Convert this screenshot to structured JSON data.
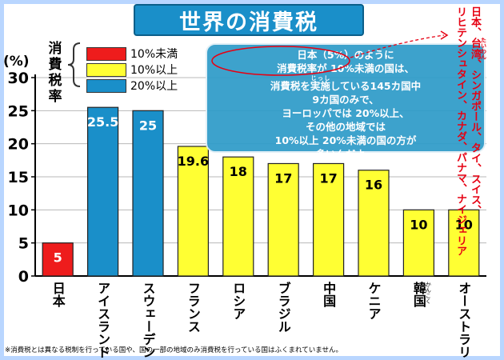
{
  "title": "世界の消費税",
  "legend": {
    "heading": "消費税率",
    "items": [
      {
        "label": "10%未満",
        "color": "#ee1c1c"
      },
      {
        "label": "10%以上",
        "color": "#ffff33"
      },
      {
        "label": "20%以上",
        "color": "#1a8fc9"
      }
    ]
  },
  "note_lines": [
    "日本（5%）のように",
    "消費税率が 10%未満の国は、",
    "消費税を実施している145カ国中",
    "9カ国のみで、",
    "ヨーロッパでは 20%以上、",
    "その他の地域では",
    "10%以上 20%未満の国の方が",
    "多いんだよ。"
  ],
  "note_ruby": {
    "base": "実施",
    "reading": "じっし"
  },
  "side_note_lines": [
    "日本、台湾、シンガポール、タイ、スイス、",
    "リヒテンシュタイン、カナダ、パナマ、ナイジェリア"
  ],
  "side_note_ruby": {
    "base": "台湾",
    "reading": "たいわん"
  },
  "korea_ruby": "かんこく",
  "footnote": "※消費税とは異なる税制を行っている国や、国の一部の地域のみ消費税を行っている国はふくまれていません。",
  "chart_data": {
    "type": "bar",
    "ylabel": "(%)",
    "ylim": [
      0,
      30
    ],
    "yticks": [
      0,
      5,
      10,
      15,
      20,
      25,
      30
    ],
    "categories": [
      "日本",
      "アイスランド",
      "スウェーデン",
      "フランス",
      "ロシア",
      "ブラジル",
      "中国",
      "ケニア",
      "韓国",
      "オーストラリア"
    ],
    "values": [
      5,
      25.5,
      25,
      19.6,
      18,
      17,
      17,
      16,
      10,
      10
    ],
    "value_labels": [
      "5",
      "25.5",
      "25",
      "19.6",
      "18",
      "17",
      "17",
      "16",
      "10",
      "10"
    ],
    "colors": [
      "#ee1c1c",
      "#1a8fc9",
      "#1a8fc9",
      "#ffff33",
      "#ffff33",
      "#ffff33",
      "#ffff33",
      "#ffff33",
      "#ffff33",
      "#ffff33"
    ],
    "grid": true
  }
}
